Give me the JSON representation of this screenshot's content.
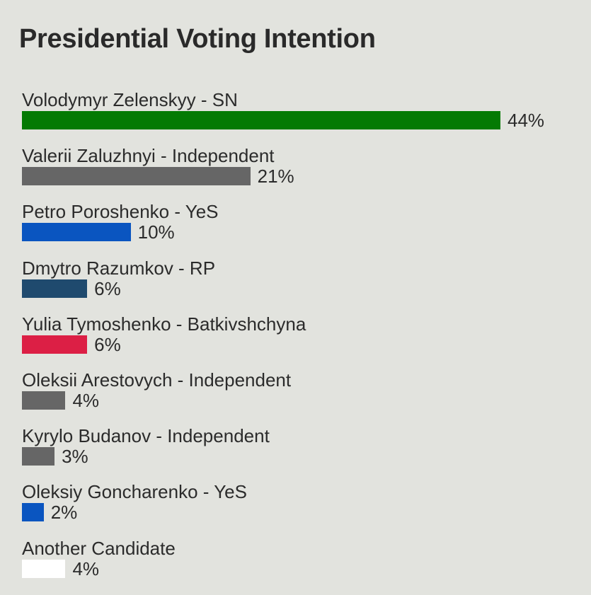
{
  "chart_data": {
    "type": "bar",
    "orientation": "horizontal",
    "title": "Presidential Voting Intention",
    "categories": [
      "Volodymyr Zelenskyy - SN",
      "Valerii Zaluzhnyi - Independent",
      "Petro Poroshenko - YeS",
      "Dmytro Razumkov - RP",
      "Yulia Tymoshenko - Batkivshchyna",
      "Oleksii Arestovych - Independent",
      "Kyrylo Budanov - Independent",
      "Oleksiy Goncharenko - YeS",
      "Another Candidate"
    ],
    "values": [
      44,
      21,
      10,
      6,
      6,
      4,
      3,
      2,
      4
    ],
    "data_labels": [
      "44%",
      "21%",
      "10%",
      "6%",
      "6%",
      "4%",
      "3%",
      "2%",
      "4%"
    ],
    "colors": [
      "#047a04",
      "#666666",
      "#0a55c0",
      "#1f4a6e",
      "#dc1f45",
      "#666666",
      "#666666",
      "#0a55c0",
      "#ffffff"
    ],
    "xlabel": "",
    "ylabel": "",
    "xlim": [
      0,
      44
    ],
    "grid": false,
    "legend": "none"
  }
}
